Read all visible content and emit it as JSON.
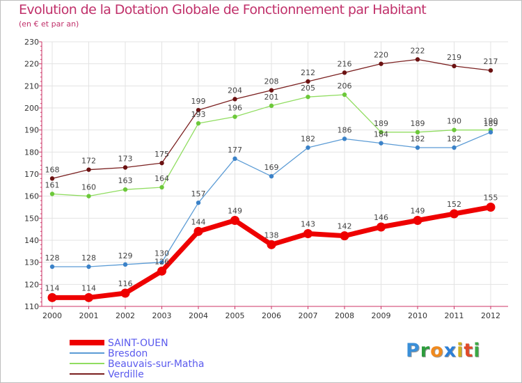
{
  "title": "Evolution de la Dotation Globale de Fonctionnement par Habitant",
  "subtitle": "(en € et par an)",
  "logo": {
    "text": "Proxiti",
    "letters": [
      "P",
      "r",
      "o",
      "x",
      "i",
      "t",
      "i"
    ],
    "colors": [
      "#3a8fd8",
      "#2c9c3c",
      "#f08a1e",
      "#2c7fd6",
      "#d0b020",
      "#e04a2a",
      "#3aa844"
    ]
  },
  "colors": {
    "title": "#c0306a",
    "axis": "#cc3366",
    "grid": "#e3e3e3",
    "legend_text": "#5a5aee"
  },
  "chart_data": {
    "type": "line",
    "title": "Evolution de la Dotation Globale de Fonctionnement par Habitant",
    "subtitle": "(en € et par an)",
    "x": [
      "2000",
      "2001",
      "2002",
      "2003",
      "2004",
      "2005",
      "2006",
      "2007",
      "2008",
      "2009",
      "2010",
      "2011",
      "2012"
    ],
    "yticks": [
      "110",
      "120",
      "130",
      "140",
      "150",
      "160",
      "170",
      "180",
      "190",
      "200",
      "210",
      "220",
      "230"
    ],
    "ylim": [
      110,
      230
    ],
    "grid": true,
    "legend_position": "bottom-left",
    "series": [
      {
        "name": "Verdille",
        "color": "#7a1f1f",
        "dot": "#6b1212",
        "values": [
          168,
          172,
          173,
          175,
          199,
          204,
          208,
          212,
          216,
          220,
          222,
          219,
          217
        ],
        "labels": [
          "168",
          "172",
          "173",
          "175",
          "199",
          "204",
          "208",
          "212",
          "216",
          "220",
          "222",
          "219",
          "217"
        ]
      },
      {
        "name": "Beauvais-sur-Matha",
        "color": "#90dd60",
        "dot": "#6cc83a",
        "values": [
          161,
          160,
          163,
          164,
          193,
          196,
          201,
          205,
          206,
          189,
          189,
          190,
          190
        ],
        "labels": [
          "161",
          "160",
          "163",
          "164",
          "193",
          "196",
          "201",
          "205",
          "206",
          "189",
          "189",
          "190",
          "190"
        ]
      },
      {
        "name": "Bresdon",
        "color": "#5b9bd5",
        "dot": "#3b82c8",
        "values": [
          128,
          128,
          129,
          130,
          157,
          177,
          169,
          182,
          186,
          184,
          182,
          182,
          189
        ],
        "labels": [
          "128",
          "128",
          "129",
          "130",
          "157",
          "177",
          "169",
          "182",
          "186",
          "184",
          "182",
          "182",
          "189"
        ]
      },
      {
        "name": "SAINT-OUEN",
        "color": "#ee0000",
        "dot": "#ee0000",
        "values": [
          114,
          114,
          116,
          126,
          144,
          149,
          138,
          143,
          142,
          146,
          149,
          152,
          155
        ],
        "labels": [
          "114",
          "114",
          "116",
          "126",
          "144",
          "149",
          "138",
          "143",
          "142",
          "146",
          "149",
          "152",
          "155"
        ]
      }
    ],
    "legend": [
      "SAINT-OUEN",
      "Bresdon",
      "Beauvais-sur-Matha",
      "Verdille"
    ]
  }
}
